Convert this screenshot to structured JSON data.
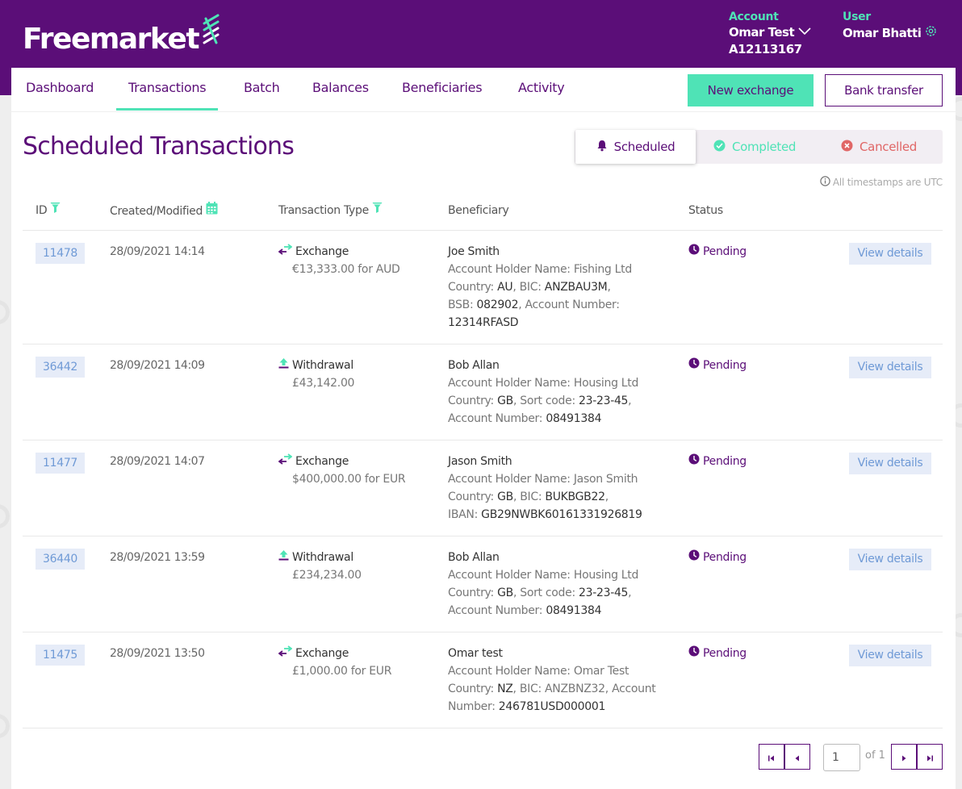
{
  "brand": {
    "name": "Freemarket"
  },
  "header": {
    "account_label": "Account",
    "account_name": "Omar Test",
    "account_number": "A12113167",
    "user_label": "User",
    "user_name": "Omar Bhatti"
  },
  "nav": {
    "items": [
      {
        "label": "Dashboard"
      },
      {
        "label": "Transactions",
        "active": true
      },
      {
        "label": "Batch"
      },
      {
        "label": "Balances"
      },
      {
        "label": "Beneficiaries"
      },
      {
        "label": "Activity"
      }
    ],
    "new_exchange": "New exchange",
    "bank_transfer": "Bank transfer"
  },
  "page": {
    "title": "Scheduled Transactions",
    "tabs": {
      "scheduled": "Scheduled",
      "completed": "Completed",
      "cancelled": "Cancelled"
    },
    "utc_note": "All timestamps are UTC"
  },
  "table": {
    "headers": {
      "id": "ID",
      "created": "Created/Modified",
      "type": "Transaction Type",
      "beneficiary": "Beneficiary",
      "status": "Status"
    },
    "view_label": "View details",
    "rows": [
      {
        "id": "11478",
        "date": "28/09/2021 14:14",
        "type": "Exchange",
        "type_icon": "exchange-icon",
        "amount": "€13,333.00 for AUD",
        "ben_name": "Joe Smith",
        "holder_label": "Account Holder Name: ",
        "holder": "Fishing Ltd",
        "country_label": "Country: ",
        "country": "AU",
        "k1": ", BIC: ",
        "v1": "ANZBAU3M",
        "p1": ",",
        "k2": "BSB: ",
        "v2": "082902",
        "p2": ", Account Number:",
        "v3": "12314RFASD",
        "status": "Pending"
      },
      {
        "id": "36442",
        "date": "28/09/2021 14:09",
        "type": "Withdrawal",
        "type_icon": "withdrawal-icon",
        "amount": "£43,142.00",
        "ben_name": "Bob Allan",
        "holder_label": "Account Holder Name: ",
        "holder": "Housing Ltd",
        "country_label": "Country: ",
        "country": "GB",
        "k1": ", Sort code: ",
        "v1": "23-23-45",
        "p1": ",",
        "k2": "Account Number: ",
        "v2": "08491384",
        "status": "Pending"
      },
      {
        "id": "11477",
        "date": "28/09/2021 14:07",
        "type": "Exchange",
        "type_icon": "exchange-icon",
        "amount": "$400,000.00 for EUR",
        "ben_name": "Jason Smith",
        "holder_label": "Account Holder Name: ",
        "holder": "Jason Smith",
        "country_label": "Country: ",
        "country": "GB",
        "k1": ", BIC: ",
        "v1": "BUKBGB22",
        "p1": ",",
        "k2": "IBAN: ",
        "v2": "GB29NWBK60161331926819",
        "status": "Pending"
      },
      {
        "id": "36440",
        "date": "28/09/2021 13:59",
        "type": "Withdrawal",
        "type_icon": "withdrawal-icon",
        "amount": "£234,234.00",
        "ben_name": "Bob Allan",
        "holder_label": "Account Holder Name: ",
        "holder": "Housing Ltd",
        "country_label": "Country: ",
        "country": "GB",
        "k1": ", Sort code: ",
        "v1": "23-23-45",
        "p1": ",",
        "k2": "Account Number: ",
        "v2": "08491384",
        "status": "Pending"
      },
      {
        "id": "11475",
        "date": "28/09/2021 13:50",
        "type": "Exchange",
        "type_icon": "exchange-icon",
        "amount": "£1,000.00 for EUR",
        "ben_name": "Omar test",
        "holder_label": "Account Holder Name: ",
        "holder": "Omar Test",
        "country_label": "Country: ",
        "country": "NZ",
        "k1": ", BIC: ",
        "v1": "ANZBNZ32",
        "p1": ", Account",
        "k2": "Number: ",
        "v2": "246781USD000001",
        "status": "Pending"
      }
    ]
  },
  "pagination": {
    "page": "1",
    "of_label": "of 1"
  },
  "colors": {
    "brand_purple": "#5b0e78",
    "accent_green": "#4fe3b6",
    "cancel_red": "#e06666",
    "link_blue": "#6f9ad6"
  }
}
